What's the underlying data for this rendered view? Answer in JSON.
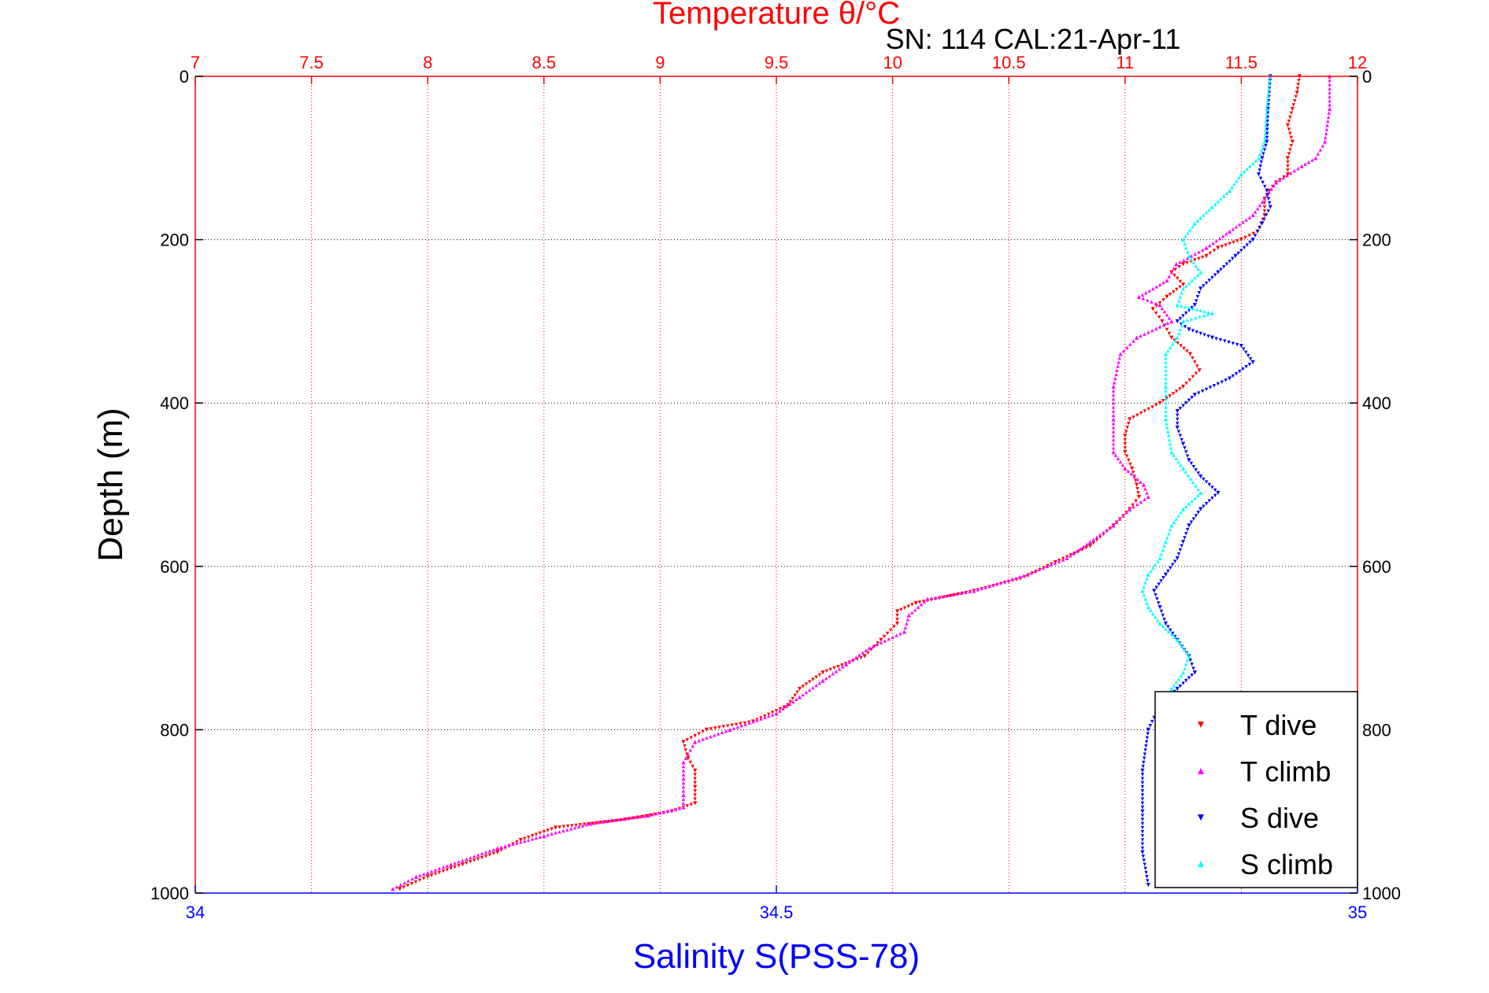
{
  "chart_data": {
    "type": "scatter",
    "title": "Temperature θ/°C",
    "subtitle": "SN: 114  CAL:21-Apr-11",
    "xlabel": "Salinity S(PSS-78)",
    "ylabel": "Depth (m)",
    "top_axis": {
      "lim": [
        7,
        12
      ],
      "ticks": [
        7,
        7.5,
        8,
        8.5,
        9,
        9.5,
        10,
        10.5,
        11,
        11.5,
        12
      ],
      "tick_labels": [
        "7",
        "7.5",
        "8",
        "8.5",
        "9",
        "9.5",
        "10",
        "10.5",
        "11",
        "11.5",
        "12"
      ],
      "color": "#ff0000"
    },
    "bottom_axis": {
      "lim": [
        34,
        35
      ],
      "ticks": [
        34,
        34.5,
        35
      ],
      "tick_labels": [
        "34",
        "34.5",
        "35"
      ],
      "color": "#0000ff"
    },
    "y_axis": {
      "lim": [
        0,
        1000
      ],
      "reversed": true,
      "ticks": [
        0,
        200,
        400,
        600,
        800,
        1000
      ],
      "tick_labels": [
        "0",
        "200",
        "400",
        "600",
        "800",
        "1000"
      ]
    },
    "grid": true,
    "legend_position": "bottom-right",
    "series": [
      {
        "name": "T dive",
        "axis": "temperature",
        "color": "#ff0000",
        "marker": "triangle-down",
        "points": [
          [
            11.75,
            0
          ],
          [
            11.74,
            20
          ],
          [
            11.72,
            40
          ],
          [
            11.7,
            60
          ],
          [
            11.72,
            80
          ],
          [
            11.7,
            100
          ],
          [
            11.7,
            120
          ],
          [
            11.65,
            130
          ],
          [
            11.62,
            140
          ],
          [
            11.6,
            150
          ],
          [
            11.6,
            170
          ],
          [
            11.57,
            190
          ],
          [
            11.5,
            200
          ],
          [
            11.4,
            210
          ],
          [
            11.35,
            220
          ],
          [
            11.25,
            230
          ],
          [
            11.2,
            240
          ],
          [
            11.25,
            255
          ],
          [
            11.18,
            270
          ],
          [
            11.12,
            285
          ],
          [
            11.16,
            300
          ],
          [
            11.2,
            320
          ],
          [
            11.28,
            340
          ],
          [
            11.32,
            360
          ],
          [
            11.25,
            380
          ],
          [
            11.15,
            400
          ],
          [
            11.02,
            420
          ],
          [
            11.0,
            440
          ],
          [
            11.0,
            460
          ],
          [
            11.03,
            480
          ],
          [
            11.05,
            500
          ],
          [
            11.06,
            515
          ],
          [
            11.02,
            530
          ],
          [
            10.95,
            550
          ],
          [
            10.85,
            575
          ],
          [
            10.7,
            595
          ],
          [
            10.55,
            615
          ],
          [
            10.35,
            630
          ],
          [
            10.1,
            645
          ],
          [
            10.02,
            655
          ],
          [
            10.02,
            670
          ],
          [
            9.95,
            690
          ],
          [
            9.88,
            710
          ],
          [
            9.7,
            730
          ],
          [
            9.6,
            750
          ],
          [
            9.55,
            770
          ],
          [
            9.4,
            790
          ],
          [
            9.2,
            800
          ],
          [
            9.1,
            815
          ],
          [
            9.12,
            835
          ],
          [
            9.15,
            850
          ],
          [
            9.15,
            870
          ],
          [
            9.15,
            890
          ],
          [
            9.05,
            900
          ],
          [
            8.85,
            910
          ],
          [
            8.55,
            920
          ],
          [
            8.4,
            935
          ],
          [
            8.3,
            950
          ],
          [
            8.15,
            965
          ],
          [
            8.0,
            980
          ],
          [
            7.88,
            995
          ]
        ]
      },
      {
        "name": "T climb",
        "axis": "temperature",
        "color": "#ff00ff",
        "marker": "triangle-up",
        "points": [
          [
            11.88,
            0
          ],
          [
            11.88,
            40
          ],
          [
            11.86,
            80
          ],
          [
            11.82,
            100
          ],
          [
            11.76,
            110
          ],
          [
            11.65,
            130
          ],
          [
            11.55,
            170
          ],
          [
            11.45,
            190
          ],
          [
            11.35,
            210
          ],
          [
            11.22,
            230
          ],
          [
            11.18,
            250
          ],
          [
            11.06,
            270
          ],
          [
            11.15,
            280
          ],
          [
            11.2,
            300
          ],
          [
            11.05,
            320
          ],
          [
            10.98,
            340
          ],
          [
            10.95,
            380
          ],
          [
            10.95,
            420
          ],
          [
            10.95,
            460
          ],
          [
            11.0,
            480
          ],
          [
            11.08,
            500
          ],
          [
            11.1,
            515
          ],
          [
            11.02,
            530
          ],
          [
            10.95,
            550
          ],
          [
            10.85,
            570
          ],
          [
            10.75,
            590
          ],
          [
            10.58,
            610
          ],
          [
            10.35,
            630
          ],
          [
            10.15,
            640
          ],
          [
            10.07,
            660
          ],
          [
            10.05,
            680
          ],
          [
            9.9,
            700
          ],
          [
            9.8,
            720
          ],
          [
            9.7,
            740
          ],
          [
            9.6,
            760
          ],
          [
            9.5,
            780
          ],
          [
            9.3,
            800
          ],
          [
            9.15,
            815
          ],
          [
            9.1,
            840
          ],
          [
            9.1,
            860
          ],
          [
            9.1,
            880
          ],
          [
            9.1,
            895
          ],
          [
            8.95,
            905
          ],
          [
            8.7,
            915
          ],
          [
            8.5,
            930
          ],
          [
            8.3,
            945
          ],
          [
            8.1,
            965
          ],
          [
            7.95,
            980
          ],
          [
            7.85,
            995
          ]
        ]
      },
      {
        "name": "S dive",
        "axis": "salinity",
        "color": "#0000ff",
        "marker": "triangle-down",
        "points": [
          [
            34.925,
            0
          ],
          [
            34.923,
            40
          ],
          [
            34.922,
            80
          ],
          [
            34.918,
            100
          ],
          [
            34.915,
            120
          ],
          [
            34.922,
            140
          ],
          [
            34.925,
            160
          ],
          [
            34.918,
            180
          ],
          [
            34.91,
            200
          ],
          [
            34.895,
            220
          ],
          [
            34.88,
            240
          ],
          [
            34.865,
            260
          ],
          [
            34.86,
            280
          ],
          [
            34.845,
            300
          ],
          [
            34.855,
            310
          ],
          [
            34.875,
            320
          ],
          [
            34.9,
            330
          ],
          [
            34.91,
            350
          ],
          [
            34.89,
            370
          ],
          [
            34.86,
            390
          ],
          [
            34.845,
            410
          ],
          [
            34.845,
            430
          ],
          [
            34.85,
            450
          ],
          [
            34.855,
            470
          ],
          [
            34.865,
            490
          ],
          [
            34.88,
            510
          ],
          [
            34.865,
            530
          ],
          [
            34.855,
            550
          ],
          [
            34.85,
            570
          ],
          [
            34.845,
            590
          ],
          [
            34.835,
            610
          ],
          [
            34.825,
            630
          ],
          [
            34.83,
            650
          ],
          [
            34.835,
            670
          ],
          [
            34.845,
            690
          ],
          [
            34.855,
            710
          ],
          [
            34.86,
            730
          ],
          [
            34.845,
            750
          ],
          [
            34.83,
            770
          ],
          [
            34.82,
            800
          ],
          [
            34.815,
            850
          ],
          [
            34.815,
            900
          ],
          [
            34.815,
            950
          ],
          [
            34.82,
            990
          ]
        ]
      },
      {
        "name": "S climb",
        "axis": "salinity",
        "color": "#00ffff",
        "marker": "triangle-up",
        "points": [
          [
            34.925,
            0
          ],
          [
            34.922,
            40
          ],
          [
            34.92,
            80
          ],
          [
            34.915,
            100
          ],
          [
            34.9,
            120
          ],
          [
            34.89,
            140
          ],
          [
            34.875,
            160
          ],
          [
            34.86,
            180
          ],
          [
            34.85,
            200
          ],
          [
            34.855,
            220
          ],
          [
            34.865,
            240
          ],
          [
            34.85,
            260
          ],
          [
            34.845,
            280
          ],
          [
            34.875,
            290
          ],
          [
            34.85,
            300
          ],
          [
            34.845,
            320
          ],
          [
            34.835,
            340
          ],
          [
            34.835,
            380
          ],
          [
            34.835,
            420
          ],
          [
            34.84,
            460
          ],
          [
            34.85,
            480
          ],
          [
            34.865,
            510
          ],
          [
            34.85,
            530
          ],
          [
            34.84,
            550
          ],
          [
            34.835,
            570
          ],
          [
            34.83,
            590
          ],
          [
            34.82,
            610
          ],
          [
            34.815,
            630
          ],
          [
            34.82,
            650
          ],
          [
            34.83,
            670
          ],
          [
            34.845,
            690
          ],
          [
            34.855,
            710
          ],
          [
            34.85,
            730
          ],
          [
            34.84,
            750
          ]
        ]
      }
    ]
  }
}
